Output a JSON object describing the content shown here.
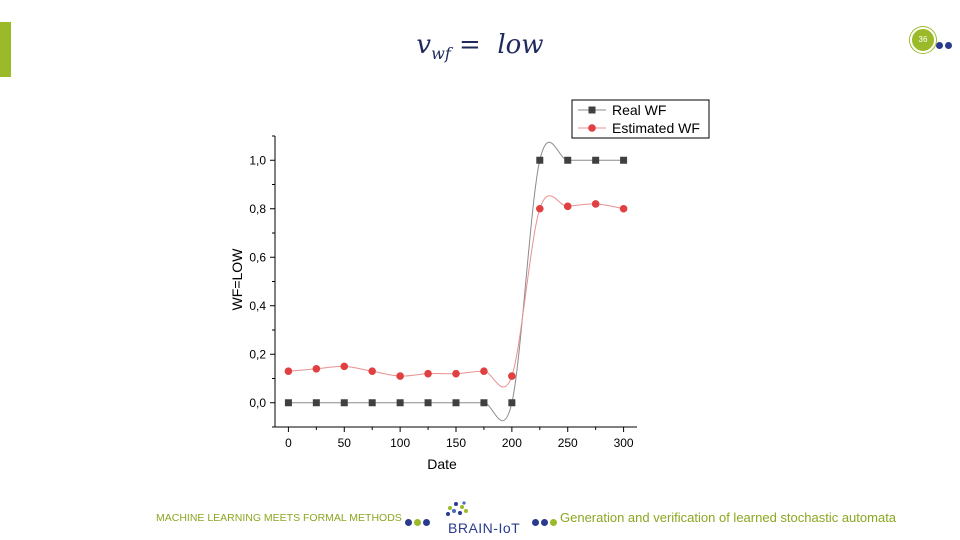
{
  "slide": {
    "title_main": "v",
    "title_sub": "wf",
    "title_rest": " =  low",
    "page_number": "36"
  },
  "footer": {
    "left_text": "MACHINE LEARNING MEETS FORMAL METHODS",
    "logo_text": "BRAIN-IoT",
    "right_text": "Generation and verification  of learned stochastic automata"
  },
  "colors": {
    "accent_green": "#9aba2a",
    "navy": "#1f2a5c",
    "real_series": "#404040",
    "estimated_series": "#e04040"
  },
  "chart_data": {
    "type": "scatter",
    "xlabel": "Date",
    "ylabel": "WF=LOW",
    "xlim": [
      -12,
      312
    ],
    "ylim": [
      -0.1,
      1.1
    ],
    "xticks": [
      0,
      50,
      100,
      150,
      200,
      250,
      300
    ],
    "yticks": [
      0.0,
      0.2,
      0.4,
      0.6,
      0.8,
      1.0
    ],
    "ytick_labels": [
      "0,0",
      "0,2",
      "0,4",
      "0,6",
      "0,8",
      "1,0"
    ],
    "grid": false,
    "legend_position": "top-right",
    "x": [
      0,
      25,
      50,
      75,
      100,
      125,
      150,
      175,
      200,
      225,
      250,
      275,
      300
    ],
    "series": [
      {
        "name": "Real WF",
        "marker": "square",
        "color": "#404040",
        "values": [
          0,
          0,
          0,
          0,
          0,
          0,
          0,
          0,
          0,
          1,
          1,
          1,
          1
        ]
      },
      {
        "name": "Estimated WF",
        "marker": "circle",
        "color": "#e04040",
        "values": [
          0.13,
          0.14,
          0.15,
          0.13,
          0.11,
          0.12,
          0.12,
          0.13,
          0.11,
          0.8,
          0.81,
          0.82,
          0.8
        ]
      }
    ]
  }
}
